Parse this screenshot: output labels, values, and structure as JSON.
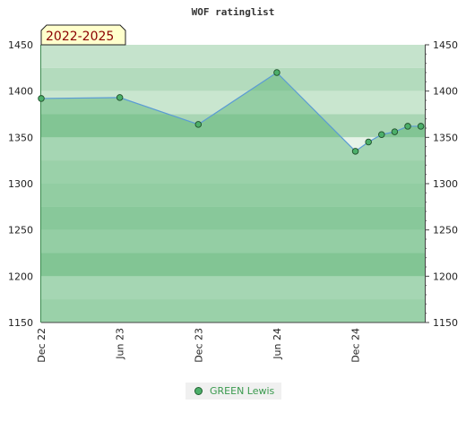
{
  "chart_data": {
    "type": "line",
    "title": "WOF ratinglist",
    "period_badge": "2022-2025",
    "ylim": [
      1150,
      1450
    ],
    "y_ticks": [
      1150,
      1200,
      1250,
      1300,
      1350,
      1400,
      1450
    ],
    "y_tick_labels": [
      "1150",
      "1200",
      "1250",
      "1300",
      "1350",
      "1400",
      "1450"
    ],
    "x_tick_labels": [
      "Dec 22",
      "Jun 23",
      "Dec 23",
      "Jun 24",
      "Dec 24"
    ],
    "x_tick_months": [
      0,
      6,
      12,
      18,
      24
    ],
    "xlim_months": [
      0,
      29.3
    ],
    "grid": false,
    "legend_position": "bottom-center",
    "series": [
      {
        "name": "GREEN Lewis",
        "color": "#4caf6a",
        "line_color": "#5b9bd5",
        "points": [
          {
            "x": "Dec 22",
            "m": 0,
            "y": 1392
          },
          {
            "x": "Jun 23",
            "m": 6,
            "y": 1393
          },
          {
            "x": "Dec 23",
            "m": 12,
            "y": 1364
          },
          {
            "x": "Jun 24",
            "m": 18,
            "y": 1420
          },
          {
            "x": "Dec 24",
            "m": 24,
            "y": 1335
          },
          {
            "x": "Jan 25",
            "m": 25,
            "y": 1345
          },
          {
            "x": "Feb 25",
            "m": 26,
            "y": 1353
          },
          {
            "x": "Mar 25",
            "m": 27,
            "y": 1356
          },
          {
            "x": "Apr 25",
            "m": 28,
            "y": 1362
          },
          {
            "x": "May 25",
            "m": 29,
            "y": 1362
          }
        ]
      }
    ]
  }
}
